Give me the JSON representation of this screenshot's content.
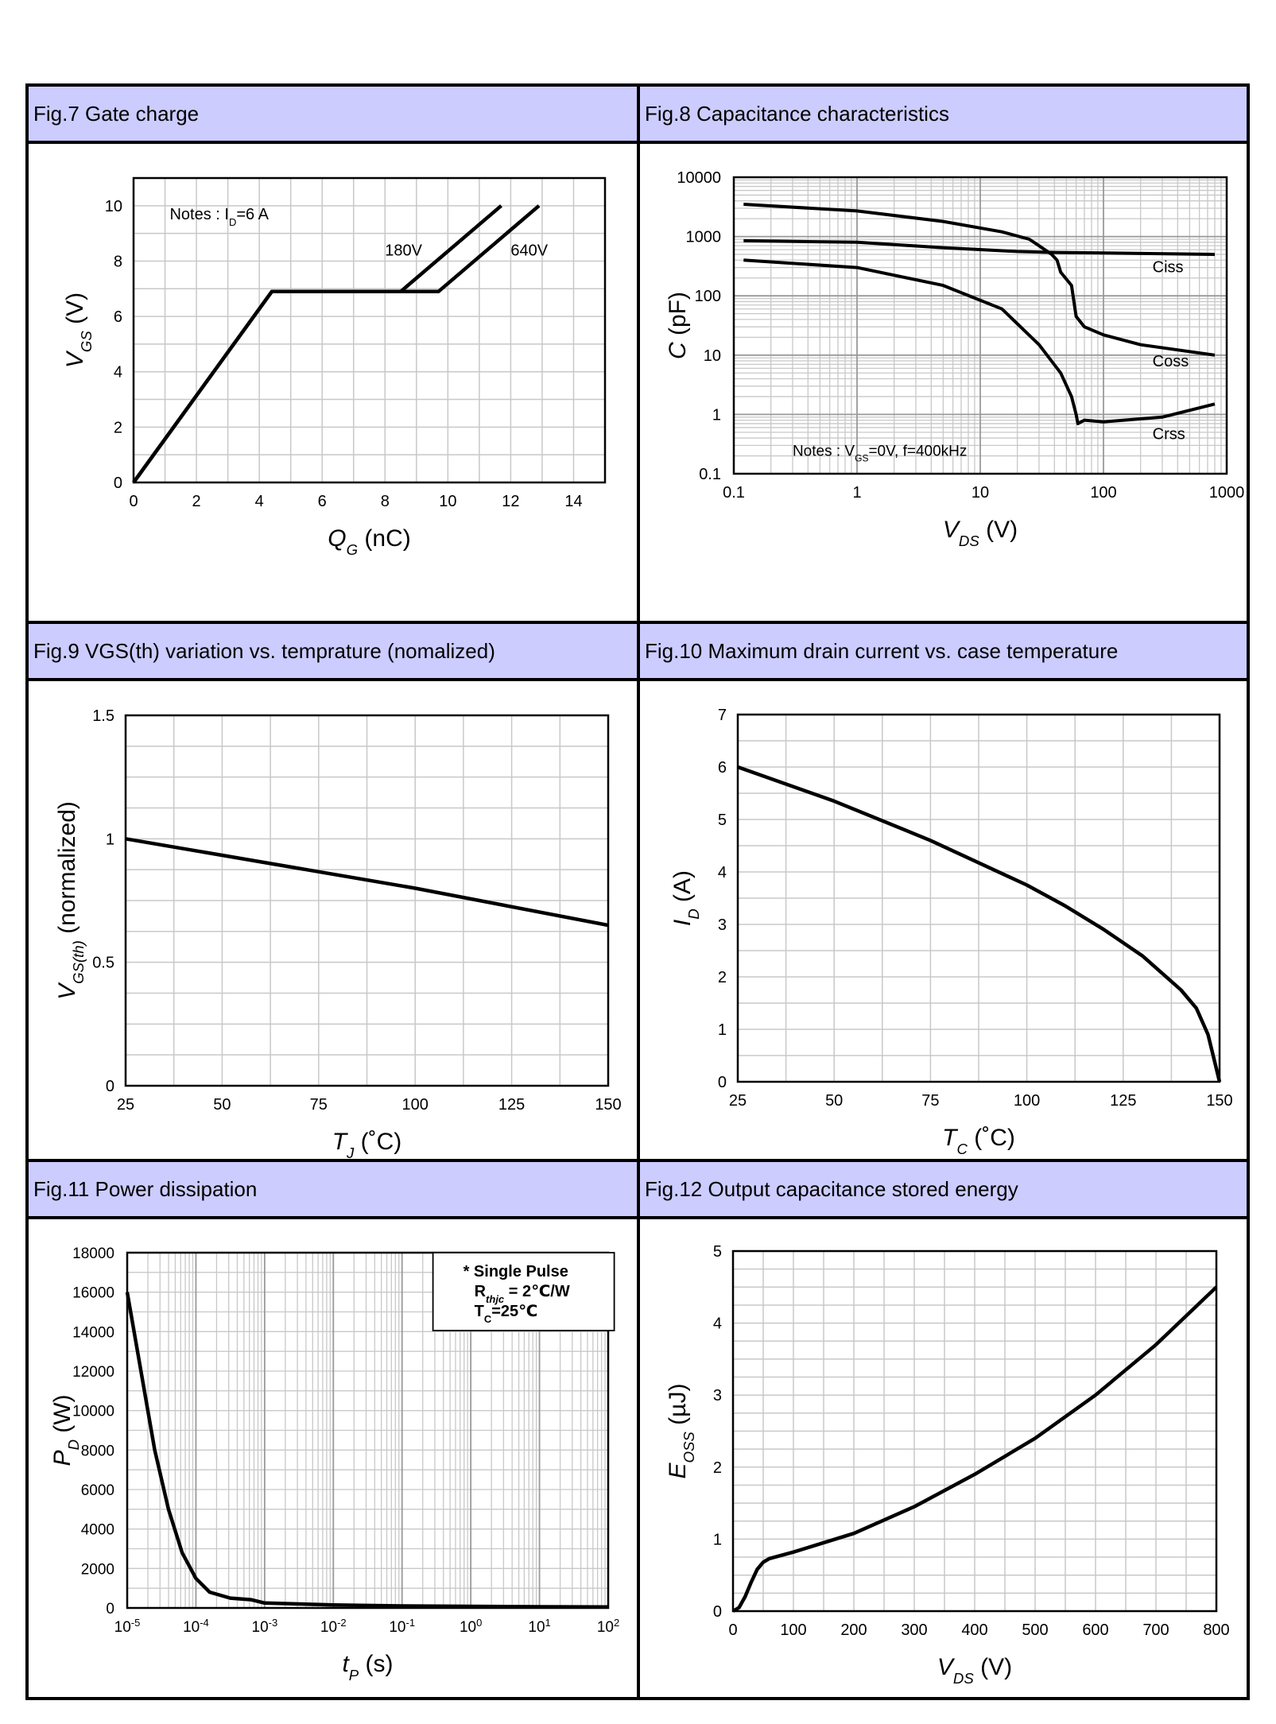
{
  "figures": {
    "fig7": {
      "title": "Fig.7 Gate charge"
    },
    "fig8": {
      "title": "Fig.8 Capacitance characteristics"
    },
    "fig9": {
      "title": "Fig.9 VGS(th) variation vs. temprature (nomalized)"
    },
    "fig10": {
      "title": "Fig.10 Maximum drain current vs. case temperature"
    },
    "fig11": {
      "title": "Fig.11 Power dissipation"
    },
    "fig12": {
      "title": "Fig.12 Output capacitance stored energy"
    }
  },
  "chart_data": [
    {
      "id": "fig7",
      "type": "line",
      "xlabel_main": "Q",
      "xlabel_sub": "G",
      "xlabel_unit": " (nC)",
      "ylabel_main": "V",
      "ylabel_sub": "GS",
      "ylabel_unit": " (V)",
      "xlim": [
        0,
        15
      ],
      "ylim": [
        0,
        11
      ],
      "xticks": [
        0,
        2,
        4,
        6,
        8,
        10,
        12,
        14
      ],
      "yticks": [
        0,
        2,
        4,
        6,
        8,
        10
      ],
      "note": {
        "prefix": "Notes : I",
        "sub": "D",
        "suffix": "=6 A"
      },
      "series": [
        {
          "name": "180V",
          "x": [
            0,
            4.4,
            8.5,
            11.7
          ],
          "y": [
            0,
            6.9,
            6.9,
            10
          ]
        },
        {
          "name": "640V",
          "x": [
            0,
            4.4,
            9.7,
            12.9
          ],
          "y": [
            0,
            6.9,
            6.9,
            10
          ]
        }
      ],
      "labels": [
        {
          "text": "180V",
          "x": 8.0,
          "y": 8.2
        },
        {
          "text": "640V",
          "x": 12.0,
          "y": 8.2
        }
      ]
    },
    {
      "id": "fig8",
      "type": "line",
      "xscale": "log",
      "yscale": "log",
      "xlabel_main": "V",
      "xlabel_sub": "DS",
      "xlabel_unit": " (V)",
      "ylabel_main": "C",
      "ylabel_unit": " (pF)",
      "xlim": [
        0.1,
        1000
      ],
      "ylim": [
        0.1,
        10000
      ],
      "xticks": [
        "0.1",
        "1",
        "10",
        "100",
        "1000"
      ],
      "yticks": [
        "0.1",
        "1",
        "10",
        "100",
        "1000",
        "10000"
      ],
      "note": {
        "prefix": "Notes : V",
        "sub": "GS",
        "suffix": "=0V, f=400kHz"
      },
      "series": [
        {
          "name": "Ciss",
          "x": [
            0.12,
            1,
            5,
            20,
            40,
            100,
            800
          ],
          "y": [
            850,
            800,
            650,
            560,
            540,
            530,
            500
          ]
        },
        {
          "name": "Coss",
          "x": [
            0.12,
            1,
            5,
            15,
            25,
            30,
            38,
            42,
            45,
            55,
            60,
            70,
            100,
            200,
            800
          ],
          "y": [
            3500,
            2700,
            1800,
            1200,
            900,
            700,
            500,
            400,
            250,
            150,
            45,
            30,
            22,
            15,
            10
          ]
        },
        {
          "name": "Crss",
          "x": [
            0.12,
            1,
            5,
            15,
            30,
            45,
            55,
            60,
            62,
            70,
            100,
            300,
            800
          ],
          "y": [
            400,
            300,
            150,
            60,
            15,
            5,
            2,
            1,
            0.7,
            0.8,
            0.75,
            0.9,
            1.5
          ]
        }
      ],
      "labels": [
        {
          "text": "Ciss",
          "x": 250,
          "y": 250
        },
        {
          "text": "Coss",
          "x": 250,
          "y": 6.5
        },
        {
          "text": "Crss",
          "x": 250,
          "y": 0.38
        }
      ]
    },
    {
      "id": "fig9",
      "type": "line",
      "xlabel_main": "T",
      "xlabel_sub": "J",
      "xlabel_unit": " (˚C)",
      "ylabel_main": "V",
      "ylabel_sub": "GS(th)",
      "ylabel_unit": " (normalized)",
      "xlim": [
        25,
        150
      ],
      "ylim": [
        0,
        1.5
      ],
      "xticks": [
        25,
        50,
        75,
        100,
        125,
        150
      ],
      "yticks": [
        "0",
        "0.5",
        "1",
        "1.5"
      ],
      "series": [
        {
          "name": "VGS(th)",
          "x": [
            25,
            100,
            150
          ],
          "y": [
            1.0,
            0.8,
            0.65
          ]
        }
      ]
    },
    {
      "id": "fig10",
      "type": "line",
      "xlabel_main": "T",
      "xlabel_sub": "C",
      "xlabel_unit": " (˚C)",
      "ylabel_main": "I",
      "ylabel_sub": "D",
      "ylabel_unit": " (A)",
      "xlim": [
        25,
        150
      ],
      "ylim": [
        0,
        7
      ],
      "xticks": [
        25,
        50,
        75,
        100,
        125,
        150
      ],
      "yticks": [
        0,
        1,
        2,
        3,
        4,
        5,
        6,
        7
      ],
      "series": [
        {
          "name": "ID",
          "x": [
            25,
            50,
            75,
            100,
            110,
            120,
            130,
            140,
            144,
            147,
            150
          ],
          "y": [
            6.0,
            5.35,
            4.6,
            3.75,
            3.35,
            2.9,
            2.4,
            1.75,
            1.4,
            0.9,
            0
          ]
        }
      ]
    },
    {
      "id": "fig11",
      "type": "line",
      "xscale": "log",
      "xlabel_main": "t",
      "xlabel_sub": "P",
      "xlabel_unit": " (s)",
      "ylabel_main": "P",
      "ylabel_sub": "D",
      "ylabel_unit": " (W)",
      "xlim_exp": [
        -5,
        2
      ],
      "ylim": [
        0,
        18000
      ],
      "xticks_exp": [
        "-5",
        "-4",
        "-3",
        "-2",
        "-1",
        "0",
        "1",
        "2"
      ],
      "yticks": [
        0,
        2000,
        4000,
        6000,
        8000,
        10000,
        12000,
        14000,
        16000,
        18000
      ],
      "legend": {
        "line1": "* Single Pulse",
        "line2_main": "R",
        "line2_sub": "thjc",
        "line2_suffix": " = 2℃/W",
        "line3_main": "T",
        "line3_sub": "C",
        "line3_suffix": "=25℃"
      },
      "series": [
        {
          "name": "PD",
          "x_exp": [
            -5,
            -4.8,
            -4.6,
            -4.4,
            -4.2,
            -4.0,
            -3.8,
            -3.5,
            -3.2,
            -3.0,
            -2.5,
            -2.0,
            -1.0,
            0,
            1,
            2
          ],
          "y": [
            16000,
            12000,
            8000,
            5000,
            2800,
            1500,
            800,
            500,
            420,
            250,
            200,
            150,
            100,
            80,
            60,
            50
          ]
        }
      ]
    },
    {
      "id": "fig12",
      "type": "line",
      "xlabel_main": "V",
      "xlabel_sub": "DS",
      "xlabel_unit": " (V)",
      "ylabel_main": "E",
      "ylabel_sub": "OSS",
      "ylabel_unit": " (µJ)",
      "xlim": [
        0,
        800
      ],
      "ylim": [
        0,
        5
      ],
      "xticks": [
        0,
        100,
        200,
        300,
        400,
        500,
        600,
        700,
        800
      ],
      "yticks": [
        0,
        1,
        2,
        3,
        4,
        5
      ],
      "series": [
        {
          "name": "EOSS",
          "x": [
            0,
            10,
            20,
            30,
            40,
            50,
            60,
            100,
            200,
            300,
            400,
            500,
            600,
            700,
            800
          ],
          "y": [
            0,
            0.05,
            0.2,
            0.4,
            0.58,
            0.68,
            0.73,
            0.82,
            1.08,
            1.45,
            1.9,
            2.4,
            3.0,
            3.7,
            4.5
          ]
        }
      ]
    }
  ]
}
